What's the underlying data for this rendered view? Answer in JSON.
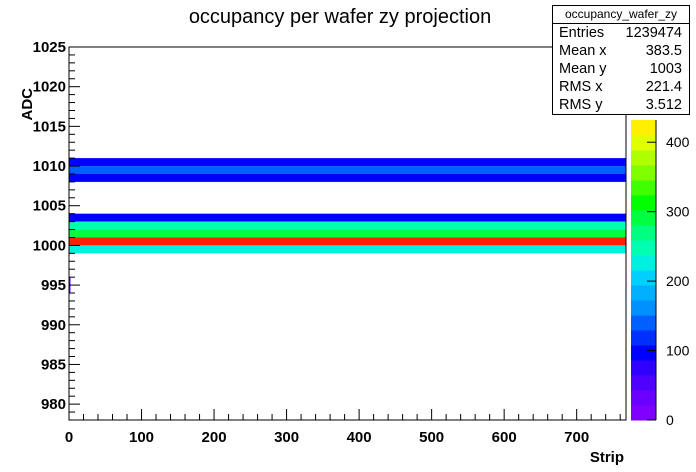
{
  "chart_data": {
    "type": "heatmap",
    "title": "occupancy per wafer zy projection",
    "xlabel": "Strip",
    "ylabel": "ADC",
    "xlim": [
      0,
      768
    ],
    "ylim": [
      978,
      1025
    ],
    "x_ticks": [
      "0",
      "100",
      "200",
      "300",
      "400",
      "500",
      "600",
      "700"
    ],
    "y_ticks": [
      "980",
      "985",
      "990",
      "995",
      "1000",
      "1005",
      "1010",
      "1015",
      "1020",
      "1025"
    ],
    "colorbar": {
      "range": [
        0,
        432
      ],
      "ticks": [
        "0",
        "100",
        "200",
        "300",
        "400"
      ],
      "palette": [
        "#7F00FF",
        "#6A00FF",
        "#5000FF",
        "#3000FF",
        "#0000FF",
        "#0030FF",
        "#0060FF",
        "#0090FF",
        "#00B0FF",
        "#00D0FF",
        "#00F0E0",
        "#00FFB0",
        "#00FF80",
        "#00FF40",
        "#00FF00",
        "#40FF00",
        "#80FF00",
        "#B0FF00",
        "#E0FF00",
        "#FFF000"
      ]
    },
    "bands": [
      {
        "y_from": 1010,
        "y_to": 1011,
        "x_from": 0,
        "x_to": 768,
        "value": 95
      },
      {
        "y_from": 1009,
        "y_to": 1010,
        "x_from": 0,
        "x_to": 768,
        "value": 140
      },
      {
        "y_from": 1008,
        "y_to": 1009,
        "x_from": 0,
        "x_to": 768,
        "value": 90
      },
      {
        "y_from": 1003,
        "y_to": 1004,
        "x_from": 0,
        "x_to": 768,
        "value": 105
      },
      {
        "y_from": 1002,
        "y_to": 1003,
        "x_from": 0,
        "x_to": 768,
        "value": 240
      },
      {
        "y_from": 1001,
        "y_to": 1002,
        "x_from": 0,
        "x_to": 768,
        "value": 300
      },
      {
        "y_from": 1000,
        "y_to": 1001,
        "x_from": 0,
        "x_to": 768,
        "value": 600
      },
      {
        "y_from": 999,
        "y_to": 1000,
        "x_from": 0,
        "x_to": 768,
        "value": 230
      },
      {
        "y_from": 994,
        "y_to": 996,
        "x_from": 0,
        "x_to": 2,
        "value": 60
      }
    ],
    "stats": {
      "name": "occupancy_wafer_zy",
      "rows": [
        {
          "label": "Entries",
          "value": "1239474"
        },
        {
          "label": "Mean x",
          "value": "383.5"
        },
        {
          "label": "Mean y",
          "value": "1003"
        },
        {
          "label": "RMS x",
          "value": "221.4"
        },
        {
          "label": "RMS y",
          "value": "3.512"
        }
      ]
    },
    "grid": false
  }
}
